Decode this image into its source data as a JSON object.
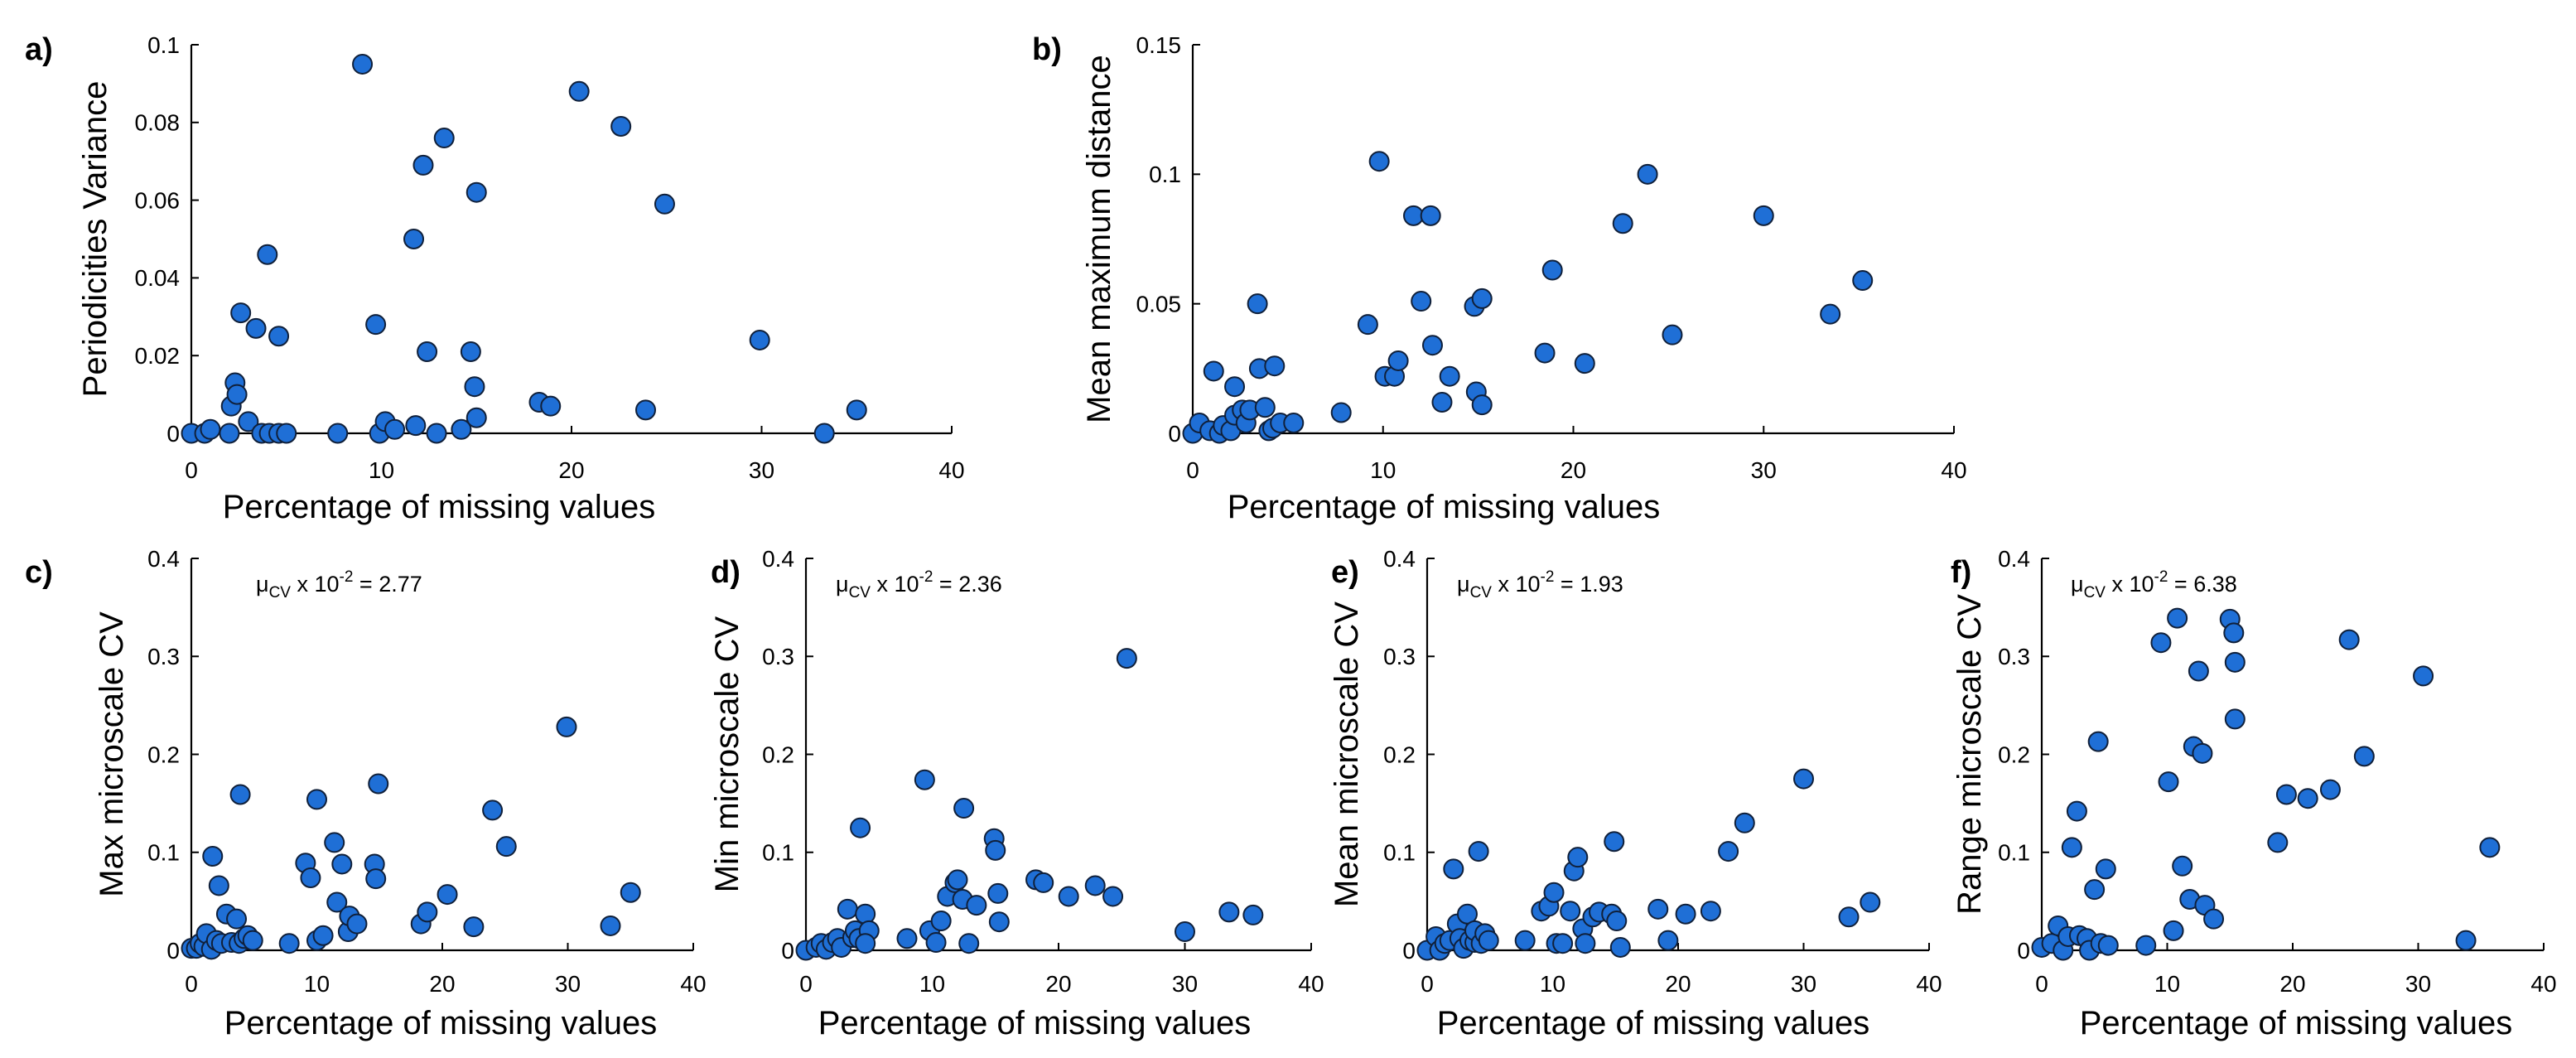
{
  "style": {
    "marker_color": "#1f6fd6",
    "marker_edge": "#10203a",
    "axis_color": "#000000"
  },
  "chart_data": [
    {
      "panel": "a)",
      "type": "scatter",
      "xlabel": "Percentage of missing values",
      "ylabel": "Periodicities Variance",
      "xlim": [
        0,
        40
      ],
      "ylim": [
        0,
        0.1
      ],
      "xticks": [
        "0",
        "10",
        "20",
        "30",
        "40"
      ],
      "yticks": [
        "0",
        "0.02",
        "0.04",
        "0.06",
        "0.08",
        "0.1"
      ],
      "points": [
        [
          0,
          0
        ],
        [
          0.7,
          0
        ],
        [
          1,
          0.001
        ],
        [
          2,
          0
        ],
        [
          2.1,
          0.007
        ],
        [
          2.3,
          0.013
        ],
        [
          2.4,
          0.01
        ],
        [
          2.6,
          0.031
        ],
        [
          3.0,
          0.003
        ],
        [
          3.4,
          0.027
        ],
        [
          3.7,
          0
        ],
        [
          4.0,
          0.046
        ],
        [
          4.1,
          0
        ],
        [
          4.6,
          0.025
        ],
        [
          4.6,
          0
        ],
        [
          5.0,
          0
        ],
        [
          7.7,
          0
        ],
        [
          9.0,
          0.095
        ],
        [
          9.7,
          0.028
        ],
        [
          9.9,
          0
        ],
        [
          10.2,
          0.003
        ],
        [
          10.7,
          0.001
        ],
        [
          11.7,
          0.05
        ],
        [
          11.8,
          0.002
        ],
        [
          12.2,
          0.069
        ],
        [
          12.4,
          0.021
        ],
        [
          12.9,
          0
        ],
        [
          13.3,
          0.076
        ],
        [
          14.2,
          0.001
        ],
        [
          14.7,
          0.021
        ],
        [
          14.9,
          0.012
        ],
        [
          15.0,
          0.062
        ],
        [
          15.0,
          0.004
        ],
        [
          18.3,
          0.008
        ],
        [
          18.9,
          0.007
        ],
        [
          20.4,
          0.088
        ],
        [
          22.6,
          0.079
        ],
        [
          23.9,
          0.006
        ],
        [
          24.9,
          0.059
        ],
        [
          29.9,
          0.024
        ],
        [
          33.3,
          0
        ],
        [
          35.0,
          0.006
        ]
      ]
    },
    {
      "panel": "b)",
      "type": "scatter",
      "xlabel": "Percentage of missing values",
      "ylabel": "Mean maximum distance",
      "xlim": [
        0,
        40
      ],
      "ylim": [
        0,
        0.15
      ],
      "xticks": [
        "0",
        "10",
        "20",
        "30",
        "40"
      ],
      "yticks": [
        "0",
        "0.05",
        "0.1",
        "0.15"
      ],
      "points": [
        [
          0,
          0
        ],
        [
          0.35,
          0.004
        ],
        [
          0.9,
          0.001
        ],
        [
          1.1,
          0.024
        ],
        [
          1.4,
          0
        ],
        [
          1.6,
          0.003
        ],
        [
          2.0,
          0.001
        ],
        [
          2.2,
          0.018
        ],
        [
          2.2,
          0.007
        ],
        [
          2.6,
          0.009
        ],
        [
          2.8,
          0.004
        ],
        [
          3.0,
          0.009
        ],
        [
          3.4,
          0.05
        ],
        [
          3.5,
          0.025
        ],
        [
          3.8,
          0.01
        ],
        [
          4.0,
          0.001
        ],
        [
          4.2,
          0.002
        ],
        [
          4.3,
          0.026
        ],
        [
          4.6,
          0.004
        ],
        [
          5.3,
          0.004
        ],
        [
          7.8,
          0.008
        ],
        [
          9.2,
          0.042
        ],
        [
          9.8,
          0.105
        ],
        [
          10.1,
          0.022
        ],
        [
          10.6,
          0.022
        ],
        [
          10.8,
          0.028
        ],
        [
          11.6,
          0.084
        ],
        [
          12.0,
          0.051
        ],
        [
          12.5,
          0.084
        ],
        [
          12.6,
          0.034
        ],
        [
          13.1,
          0.012
        ],
        [
          13.5,
          0.022
        ],
        [
          14.8,
          0.049
        ],
        [
          14.9,
          0.016
        ],
        [
          15.2,
          0.052
        ],
        [
          15.2,
          0.011
        ],
        [
          18.5,
          0.031
        ],
        [
          18.9,
          0.063
        ],
        [
          20.6,
          0.027
        ],
        [
          22.6,
          0.081
        ],
        [
          23.9,
          0.1
        ],
        [
          25.2,
          0.038
        ],
        [
          30.0,
          0.084
        ],
        [
          33.5,
          0.046
        ],
        [
          35.2,
          0.059
        ]
      ]
    },
    {
      "panel": "c)",
      "type": "scatter",
      "xlabel": "Percentage of missing values",
      "ylabel": "Max microscale CV",
      "xlim": [
        0,
        40
      ],
      "ylim": [
        0,
        0.4
      ],
      "xticks": [
        "0",
        "10",
        "20",
        "30",
        "40"
      ],
      "yticks": [
        "0",
        "0.1",
        "0.2",
        "0.3",
        "0.4"
      ],
      "annotation": {
        "mu": "μ",
        "sub": "CV",
        "times": " x 10",
        "sup": "-2",
        "eq": " = 2.77"
      },
      "points": [
        [
          0,
          0.002
        ],
        [
          0.4,
          0.002
        ],
        [
          0.7,
          0.007
        ],
        [
          1.0,
          0.004
        ],
        [
          1.2,
          0.017
        ],
        [
          1.6,
          0.001
        ],
        [
          1.7,
          0.096
        ],
        [
          2.0,
          0.01
        ],
        [
          2.2,
          0.066
        ],
        [
          2.4,
          0.007
        ],
        [
          2.8,
          0.037
        ],
        [
          3.2,
          0.008
        ],
        [
          3.6,
          0.032
        ],
        [
          3.8,
          0.007
        ],
        [
          3.9,
          0.159
        ],
        [
          4.2,
          0.012
        ],
        [
          4.5,
          0.015
        ],
        [
          4.9,
          0.01
        ],
        [
          7.8,
          0.007
        ],
        [
          9.1,
          0.089
        ],
        [
          9.5,
          0.074
        ],
        [
          10.0,
          0.154
        ],
        [
          10.0,
          0.01
        ],
        [
          10.5,
          0.015
        ],
        [
          11.4,
          0.11
        ],
        [
          11.6,
          0.049
        ],
        [
          12.0,
          0.088
        ],
        [
          12.5,
          0.019
        ],
        [
          12.6,
          0.035
        ],
        [
          13.2,
          0.027
        ],
        [
          14.6,
          0.088
        ],
        [
          14.7,
          0.073
        ],
        [
          14.9,
          0.17
        ],
        [
          18.3,
          0.027
        ],
        [
          18.8,
          0.039
        ],
        [
          20.4,
          0.057
        ],
        [
          22.5,
          0.024
        ],
        [
          24.0,
          0.143
        ],
        [
          25.1,
          0.106
        ],
        [
          29.9,
          0.228
        ],
        [
          33.4,
          0.025
        ],
        [
          35.0,
          0.059
        ]
      ]
    },
    {
      "panel": "d)",
      "type": "scatter",
      "xlabel": "Percentage of missing values",
      "ylabel": "Min microscale CV",
      "xlim": [
        0,
        40
      ],
      "ylim": [
        0,
        0.4
      ],
      "xticks": [
        "0",
        "10",
        "20",
        "30",
        "40"
      ],
      "yticks": [
        "0",
        "0.1",
        "0.2",
        "0.3",
        "0.4"
      ],
      "annotation": {
        "mu": "μ",
        "sub": "CV",
        "times": " x 10",
        "sup": "-2",
        "eq": " = 2.36"
      },
      "points": [
        [
          0,
          0
        ],
        [
          0.8,
          0.003
        ],
        [
          1.2,
          0.007
        ],
        [
          1.6,
          0.001
        ],
        [
          2.1,
          0.008
        ],
        [
          2.5,
          0.012
        ],
        [
          2.8,
          0.003
        ],
        [
          3.3,
          0.042
        ],
        [
          3.7,
          0.013
        ],
        [
          3.9,
          0.02
        ],
        [
          4.2,
          0.012
        ],
        [
          4.3,
          0.125
        ],
        [
          4.7,
          0.037
        ],
        [
          5.0,
          0.02
        ],
        [
          4.7,
          0.007
        ],
        [
          8.0,
          0.012
        ],
        [
          9.4,
          0.174
        ],
        [
          9.8,
          0.02
        ],
        [
          10.3,
          0.008
        ],
        [
          10.7,
          0.03
        ],
        [
          11.2,
          0.055
        ],
        [
          11.8,
          0.069
        ],
        [
          12.0,
          0.072
        ],
        [
          12.4,
          0.052
        ],
        [
          12.5,
          0.145
        ],
        [
          12.9,
          0.007
        ],
        [
          13.5,
          0.046
        ],
        [
          14.9,
          0.114
        ],
        [
          15.0,
          0.102
        ],
        [
          15.2,
          0.058
        ],
        [
          15.3,
          0.029
        ],
        [
          18.2,
          0.072
        ],
        [
          18.8,
          0.069
        ],
        [
          20.8,
          0.055
        ],
        [
          22.9,
          0.066
        ],
        [
          24.3,
          0.055
        ],
        [
          25.4,
          0.298
        ],
        [
          30.0,
          0.019
        ],
        [
          33.5,
          0.039
        ],
        [
          35.4,
          0.036
        ]
      ]
    },
    {
      "panel": "e)",
      "type": "scatter",
      "xlabel": "Percentage of missing values",
      "ylabel": "Mean microscale CV",
      "xlim": [
        0,
        40
      ],
      "ylim": [
        0,
        0.4
      ],
      "xticks": [
        "0",
        "10",
        "20",
        "30",
        "40"
      ],
      "yticks": [
        "0",
        "0.1",
        "0.2",
        "0.3",
        "0.4"
      ],
      "annotation": {
        "mu": "μ",
        "sub": "CV",
        "times": " x 10",
        "sup": "-2",
        "eq": " = 1.93"
      },
      "points": [
        [
          0,
          0
        ],
        [
          0.7,
          0.014
        ],
        [
          1.0,
          0
        ],
        [
          1.4,
          0.007
        ],
        [
          1.8,
          0.01
        ],
        [
          2.1,
          0.083
        ],
        [
          2.4,
          0.027
        ],
        [
          2.6,
          0.012
        ],
        [
          2.9,
          0.002
        ],
        [
          3.2,
          0.037
        ],
        [
          3.4,
          0.01
        ],
        [
          3.8,
          0.008
        ],
        [
          3.8,
          0.02
        ],
        [
          4.1,
          0.101
        ],
        [
          4.3,
          0.007
        ],
        [
          4.6,
          0.017
        ],
        [
          4.9,
          0.01
        ],
        [
          7.8,
          0.01
        ],
        [
          9.1,
          0.04
        ],
        [
          9.7,
          0.045
        ],
        [
          10.1,
          0.059
        ],
        [
          10.3,
          0.007
        ],
        [
          10.8,
          0.007
        ],
        [
          11.4,
          0.04
        ],
        [
          11.7,
          0.081
        ],
        [
          12.0,
          0.095
        ],
        [
          12.4,
          0.022
        ],
        [
          12.6,
          0.007
        ],
        [
          13.2,
          0.034
        ],
        [
          13.7,
          0.039
        ],
        [
          14.7,
          0.037
        ],
        [
          14.9,
          0.111
        ],
        [
          15.1,
          0.03
        ],
        [
          15.4,
          0.003
        ],
        [
          18.4,
          0.042
        ],
        [
          19.2,
          0.01
        ],
        [
          20.6,
          0.037
        ],
        [
          22.6,
          0.04
        ],
        [
          24.0,
          0.101
        ],
        [
          25.3,
          0.13
        ],
        [
          30.0,
          0.175
        ],
        [
          33.6,
          0.034
        ],
        [
          35.3,
          0.049
        ]
      ]
    },
    {
      "panel": "f)",
      "type": "scatter",
      "xlabel": "Percentage of missing values",
      "ylabel": "Range microscale CV",
      "xlim": [
        0,
        40
      ],
      "ylim": [
        0,
        0.4
      ],
      "xticks": [
        "0",
        "10",
        "20",
        "30",
        "40"
      ],
      "yticks": [
        "0",
        "0.1",
        "0.2",
        "0.3",
        "0.4"
      ],
      "annotation": {
        "mu": "μ",
        "sub": "CV",
        "times": " x 10",
        "sup": "-2",
        "eq": " = 6.38"
      },
      "points": [
        [
          0,
          0.003
        ],
        [
          0.8,
          0.007
        ],
        [
          1.3,
          0.025
        ],
        [
          1.7,
          0
        ],
        [
          2.1,
          0.014
        ],
        [
          2.4,
          0.105
        ],
        [
          2.8,
          0.142
        ],
        [
          3.0,
          0.015
        ],
        [
          3.6,
          0.012
        ],
        [
          3.8,
          0
        ],
        [
          4.2,
          0.062
        ],
        [
          4.5,
          0.213
        ],
        [
          4.7,
          0.007
        ],
        [
          5.1,
          0.083
        ],
        [
          5.3,
          0.005
        ],
        [
          8.3,
          0.005
        ],
        [
          9.5,
          0.314
        ],
        [
          10.1,
          0.172
        ],
        [
          10.5,
          0.02
        ],
        [
          10.8,
          0.339
        ],
        [
          11.2,
          0.086
        ],
        [
          11.8,
          0.052
        ],
        [
          12.1,
          0.208
        ],
        [
          12.5,
          0.285
        ],
        [
          12.8,
          0.201
        ],
        [
          13.0,
          0.046
        ],
        [
          13.7,
          0.032
        ],
        [
          15.0,
          0.338
        ],
        [
          15.3,
          0.324
        ],
        [
          15.4,
          0.236
        ],
        [
          15.4,
          0.294
        ],
        [
          18.8,
          0.11
        ],
        [
          19.5,
          0.159
        ],
        [
          21.2,
          0.155
        ],
        [
          23.0,
          0.164
        ],
        [
          24.5,
          0.317
        ],
        [
          25.7,
          0.198
        ],
        [
          30.4,
          0.28
        ],
        [
          33.8,
          0.01
        ],
        [
          35.7,
          0.105
        ]
      ]
    }
  ]
}
